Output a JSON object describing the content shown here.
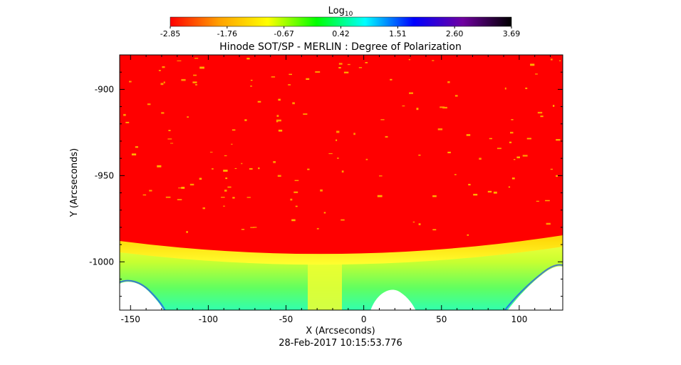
{
  "chart_data": {
    "type": "heatmap",
    "title": "Hinode SOT/SP - MERLIN : Degree of Polarization",
    "xlabel": "X (Arcseconds)",
    "ylabel": "Y (Arcseconds)",
    "timestamp": "28-Feb-2017 10:15:53.776",
    "colorbar": {
      "label_base": "Log",
      "label_sub": "10",
      "range": [
        -2.85,
        3.69
      ],
      "ticks": [
        "-2.85",
        "-1.76",
        "-0.67",
        "0.42",
        "1.51",
        "2.60",
        "3.69"
      ],
      "colors": [
        "#ff0000",
        "#ffa000",
        "#ffff00",
        "#00ff00",
        "#00ffff",
        "#0000ff",
        "#7000a0",
        "#000000"
      ]
    },
    "xlim": [
      -157,
      128
    ],
    "ylim": [
      -1028,
      -880
    ],
    "xticks": [
      -150,
      -100,
      -50,
      0,
      50,
      100
    ],
    "yticks": [
      -900,
      -950,
      -1000
    ],
    "xtick_labels": [
      "-150",
      "-100",
      "-50",
      "0",
      "50",
      "100"
    ],
    "ytick_labels": [
      "-900",
      "-950",
      "-1000"
    ],
    "limb": {
      "y_at_edges": -984,
      "y_at_center": -992
    },
    "regions": [
      {
        "name": "disk",
        "level": -2.85
      },
      {
        "name": "limb-band",
        "level": -2.0
      },
      {
        "name": "off-limb",
        "level": -1.0
      },
      {
        "name": "off-limb-edge",
        "level": 0.8
      }
    ]
  }
}
